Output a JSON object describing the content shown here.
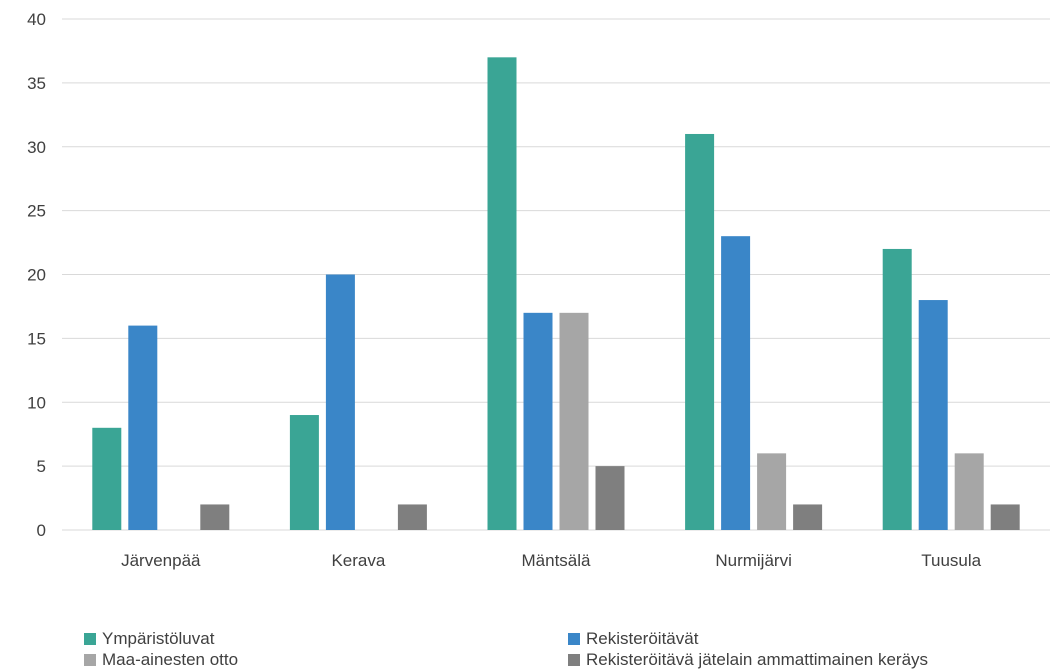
{
  "chart_data": {
    "type": "bar",
    "categories": [
      "Järvenpää",
      "Kerava",
      "Mäntsälä",
      "Nurmijärvi",
      "Tuusula"
    ],
    "series": [
      {
        "name": "Ympäristöluvat",
        "color": "#3aa595",
        "values": [
          8,
          9,
          37,
          31,
          22
        ]
      },
      {
        "name": "Rekisteröitävät",
        "color": "#3a86c8",
        "values": [
          16,
          20,
          17,
          23,
          18
        ]
      },
      {
        "name": "Maa-ainesten otto",
        "color": "#a6a6a6",
        "values": [
          0,
          0,
          17,
          6,
          6
        ]
      },
      {
        "name": "Rekisteröitävä jätelain ammattimainen keräys",
        "color": "#7f7f7f",
        "values": [
          2,
          2,
          5,
          2,
          2
        ]
      }
    ],
    "ylim": [
      0,
      40
    ],
    "yticks": [
      "0",
      "5",
      "10",
      "15",
      "20",
      "25",
      "30",
      "35",
      "40"
    ],
    "grid": true,
    "legend_position": "bottom"
  }
}
